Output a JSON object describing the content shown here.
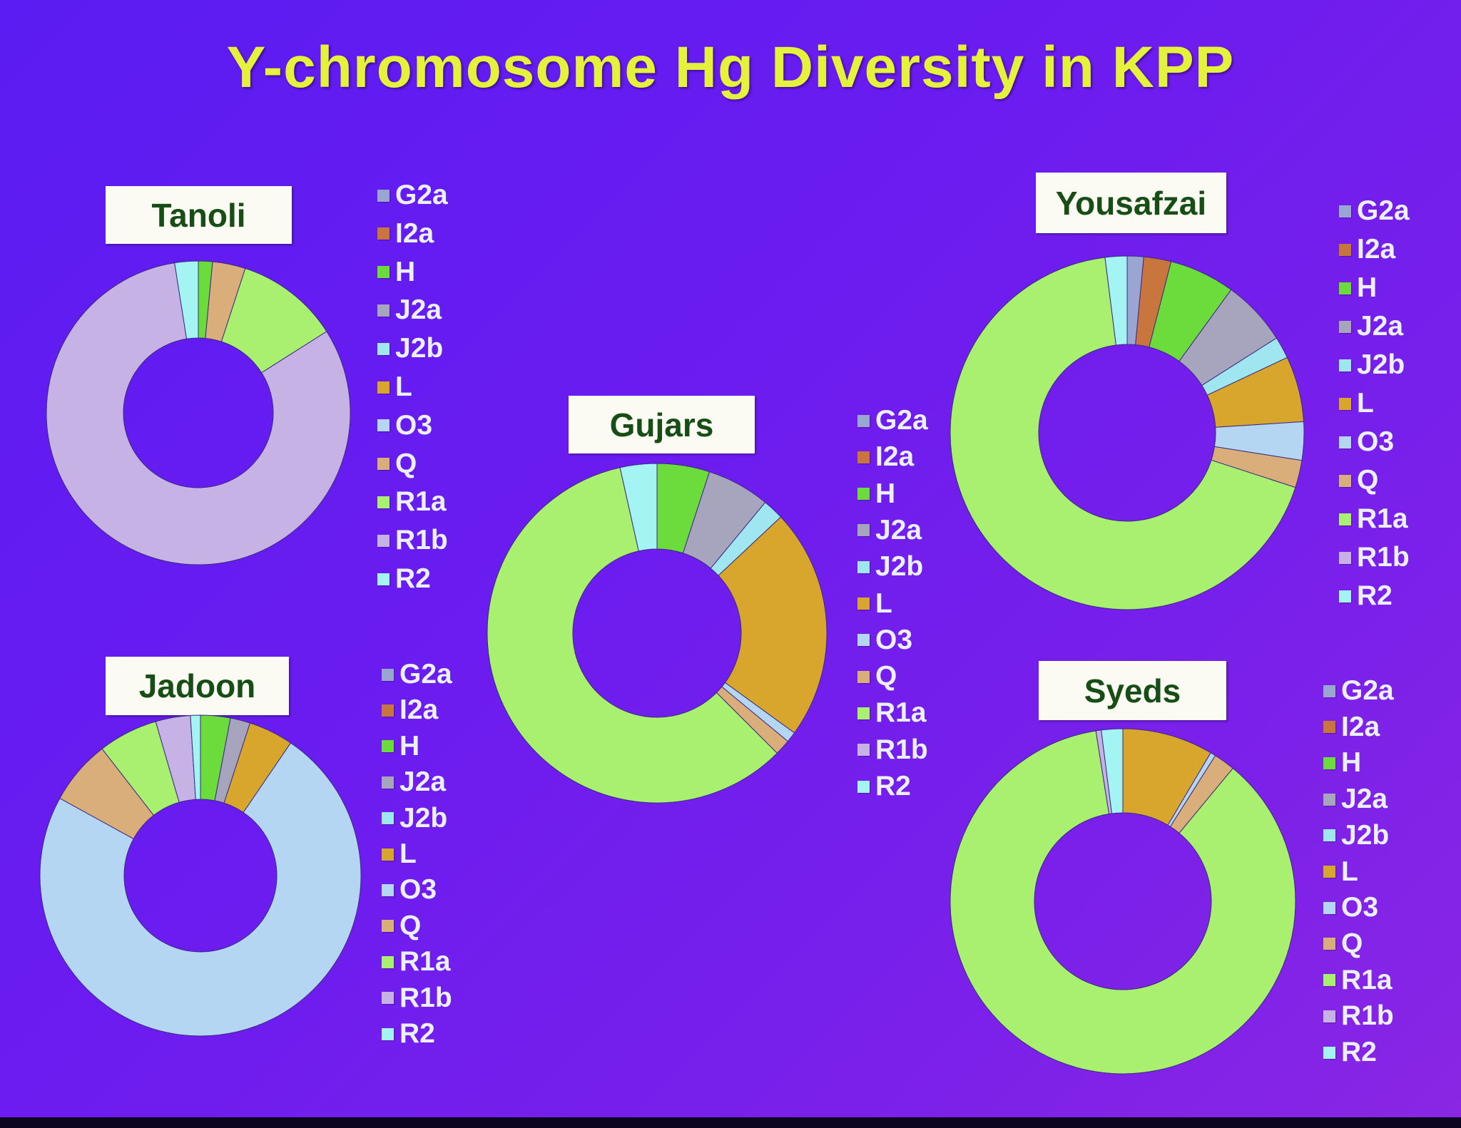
{
  "title": "Y-chromosome Hg Diversity in KPP",
  "legend_colors": {
    "G2a": "#9aa6d2",
    "I2a": "#c9763e",
    "H": "#6bdc3c",
    "J2a": "#a7a4be",
    "J2b": "#9fe6f0",
    "L": "#d8a62c",
    "O3": "#b4d6f2",
    "Q": "#d9ae7a",
    "R1a": "#aaf070",
    "R1b": "#c6b2e4",
    "R2": "#a4f4f4"
  },
  "chart_data": [
    {
      "type": "pie",
      "title": "Tanoli",
      "hole": true,
      "categories": [
        "G2a",
        "I2a",
        "H",
        "J2a",
        "J2b",
        "L",
        "O3",
        "Q",
        "R1a",
        "R1b",
        "R2"
      ],
      "values": [
        0,
        0,
        1.5,
        0,
        0,
        0,
        0,
        3.5,
        11,
        81.5,
        2.5
      ],
      "legend_placement": "right"
    },
    {
      "type": "pie",
      "title": "Gujars",
      "hole": true,
      "categories": [
        "G2a",
        "I2a",
        "H",
        "J2a",
        "J2b",
        "L",
        "O3",
        "Q",
        "R1a",
        "R1b",
        "R2"
      ],
      "values": [
        0,
        0,
        5,
        6,
        2,
        22,
        1,
        1.5,
        59,
        0,
        3.5
      ],
      "legend_placement": "right"
    },
    {
      "type": "pie",
      "title": "Yousafzai",
      "hole": true,
      "categories": [
        "G2a",
        "I2a",
        "H",
        "J2a",
        "J2b",
        "L",
        "O3",
        "Q",
        "R1a",
        "R1b",
        "R2"
      ],
      "values": [
        1.5,
        2.5,
        6,
        6,
        2,
        6,
        3.5,
        2.5,
        68,
        0,
        2
      ],
      "legend_placement": "right"
    },
    {
      "type": "pie",
      "title": "Jadoon",
      "hole": true,
      "categories": [
        "G2a",
        "I2a",
        "H",
        "J2a",
        "J2b",
        "L",
        "O3",
        "Q",
        "R1a",
        "R1b",
        "R2"
      ],
      "values": [
        0,
        0,
        3,
        2,
        0,
        4.5,
        73.5,
        6.5,
        6,
        3.5,
        1
      ],
      "legend_placement": "right"
    },
    {
      "type": "pie",
      "title": "Syeds",
      "hole": true,
      "categories": [
        "G2a",
        "I2a",
        "H",
        "J2a",
        "J2b",
        "L",
        "O3",
        "Q",
        "R1a",
        "R1b",
        "R2"
      ],
      "values": [
        0,
        0,
        0,
        0,
        0,
        8.5,
        0.5,
        2,
        86.5,
        0.5,
        2
      ],
      "legend_placement": "right"
    }
  ]
}
